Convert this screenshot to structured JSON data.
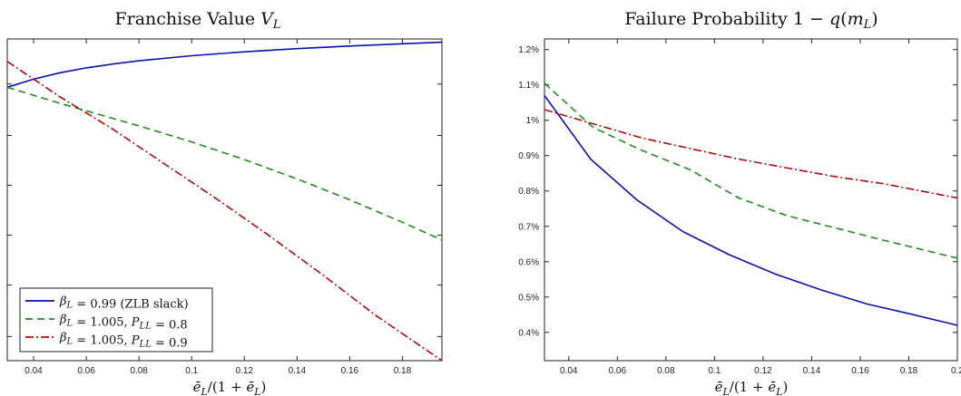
{
  "colors": {
    "solid": "#0a12a8",
    "dashed": "#1e8c1e",
    "dashdot": "#b00a0a"
  },
  "legend": [
    {
      "label": "β_L = 0.99 (ZLB slack)",
      "style": "solid"
    },
    {
      "label": "β_L = 1.005, P_LL = 0.8",
      "style": "dashed"
    },
    {
      "label": "β_L = 1.005, P_LL = 0.9",
      "style": "dashdot"
    }
  ],
  "chart_data": [
    {
      "type": "line",
      "title": "Franchise Value V_L",
      "xlabel": "ē_L/(1 + ē_L)",
      "ylabel": "",
      "xlim": [
        0.03,
        0.195
      ],
      "ylim": [
        0,
        1
      ],
      "x_ticks": [
        0.04,
        0.06,
        0.08,
        0.1,
        0.12,
        0.14,
        0.16,
        0.18
      ],
      "x_tick_labels": [
        "0.04",
        "0.06",
        "0.08",
        "0.1",
        "0.12",
        "0.14",
        "0.16",
        "0.18"
      ],
      "y_ticks": [
        0.075,
        0.235,
        0.39,
        0.545,
        0.7,
        0.86
      ],
      "y_tick_labels": [],
      "legend_position": "bottom-left",
      "series": [
        {
          "name": "β_L = 0.99 (ZLB slack)",
          "style": "solid",
          "x": [
            0.03,
            0.04,
            0.05,
            0.06,
            0.07,
            0.08,
            0.1,
            0.12,
            0.14,
            0.16,
            0.18,
            0.195
          ],
          "y": [
            0.85,
            0.875,
            0.895,
            0.91,
            0.922,
            0.932,
            0.948,
            0.96,
            0.97,
            0.978,
            0.985,
            0.99
          ]
        },
        {
          "name": "β_L = 1.005, P_LL = 0.8",
          "style": "dashed",
          "x": [
            0.03,
            0.05,
            0.08,
            0.1,
            0.12,
            0.14,
            0.16,
            0.18,
            0.195
          ],
          "y": [
            0.85,
            0.8,
            0.73,
            0.68,
            0.625,
            0.565,
            0.5,
            0.43,
            0.375
          ]
        },
        {
          "name": "β_L = 1.005, P_LL = 0.9",
          "style": "dashdot",
          "x": [
            0.03,
            0.05,
            0.07,
            0.09,
            0.11,
            0.13,
            0.15,
            0.17,
            0.195
          ],
          "y": [
            0.93,
            0.82,
            0.72,
            0.61,
            0.5,
            0.385,
            0.265,
            0.14,
            0.0
          ]
        }
      ]
    },
    {
      "type": "line",
      "title": "Failure Probability 1 − q(m_L)",
      "xlabel": "ē_L/(1 + ē_L)",
      "ylabel": "",
      "xlim": [
        0.03,
        0.2
      ],
      "ylim": [
        0.0032,
        0.0123
      ],
      "x_ticks": [
        0.04,
        0.06,
        0.08,
        0.1,
        0.12,
        0.14,
        0.16,
        0.18,
        0.2
      ],
      "x_tick_labels": [
        "0.04",
        "0.06",
        "0.08",
        "0.1",
        "0.12",
        "0.14",
        "0.16",
        "0.18",
        "0.2"
      ],
      "y_ticks": [
        0.004,
        0.005,
        0.006,
        0.007,
        0.008,
        0.009,
        0.01,
        0.011,
        0.012
      ],
      "y_tick_labels": [
        "0.4%",
        "0.5%",
        "0.6%",
        "0.7%",
        "0.8%",
        "0.9%",
        "1%",
        "1.1%",
        "1.2%"
      ],
      "series": [
        {
          "name": "β_L = 0.99 (ZLB slack)",
          "style": "solid",
          "x": [
            0.03,
            0.049,
            0.068,
            0.087,
            0.106,
            0.125,
            0.144,
            0.163,
            0.182,
            0.2
          ],
          "y": [
            0.0107,
            0.0089,
            0.00775,
            0.00685,
            0.0062,
            0.00565,
            0.0052,
            0.0048,
            0.0045,
            0.0042
          ]
        },
        {
          "name": "β_L = 1.005, P_LL = 0.8",
          "style": "dashed",
          "x": [
            0.03,
            0.05,
            0.07,
            0.09,
            0.11,
            0.13,
            0.15,
            0.17,
            0.2
          ],
          "y": [
            0.01105,
            0.0098,
            0.00915,
            0.0086,
            0.0078,
            0.0073,
            0.00695,
            0.0066,
            0.0061
          ]
        },
        {
          "name": "β_L = 1.005, P_LL = 0.9",
          "style": "dashdot",
          "x": [
            0.03,
            0.05,
            0.07,
            0.09,
            0.11,
            0.13,
            0.15,
            0.17,
            0.2
          ],
          "y": [
            0.0103,
            0.0099,
            0.0095,
            0.0092,
            0.0089,
            0.00865,
            0.0084,
            0.0082,
            0.0078
          ]
        }
      ]
    }
  ]
}
